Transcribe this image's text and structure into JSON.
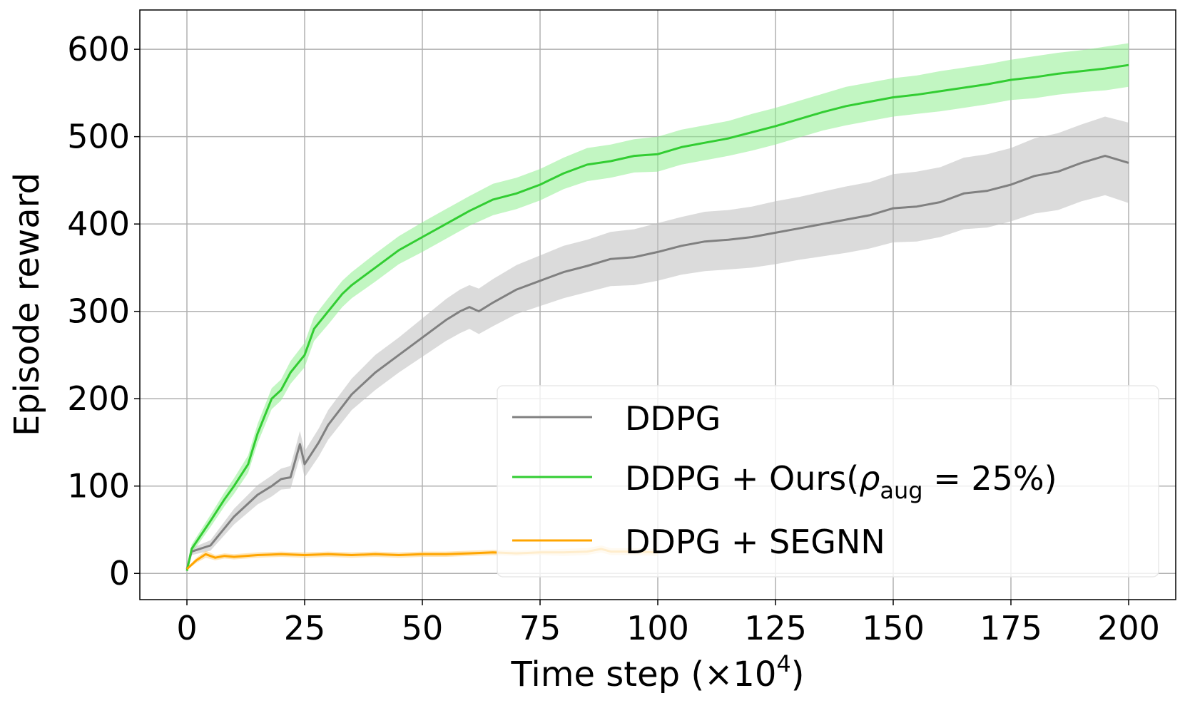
{
  "chart_data": {
    "type": "line",
    "title": "",
    "xlabel": "Time step (×10",
    "xlabel_sup": "4",
    "xlabel_suffix": ")",
    "ylabel": "Episode reward",
    "xlim": [
      -10,
      210
    ],
    "ylim": [
      -30,
      645
    ],
    "xticks": [
      0,
      25,
      50,
      75,
      100,
      125,
      150,
      175,
      200
    ],
    "yticks": [
      0,
      100,
      200,
      300,
      400,
      500,
      600
    ],
    "grid": true,
    "legend_position": "lower-right",
    "series": [
      {
        "name": "DDPG",
        "legend_main": "DDPG",
        "color": "#808080",
        "band_color": "#bebebe",
        "x": [
          0,
          1,
          5,
          10,
          15,
          18,
          20,
          22,
          24,
          25,
          28,
          30,
          35,
          40,
          45,
          50,
          55,
          58,
          60,
          62,
          65,
          70,
          75,
          80,
          85,
          90,
          95,
          100,
          105,
          110,
          115,
          120,
          125,
          130,
          135,
          140,
          145,
          150,
          155,
          160,
          165,
          170,
          175,
          180,
          185,
          190,
          195,
          200
        ],
        "y": [
          5,
          25,
          32,
          65,
          90,
          100,
          108,
          110,
          148,
          125,
          150,
          170,
          205,
          230,
          250,
          270,
          290,
          300,
          305,
          300,
          310,
          325,
          335,
          345,
          352,
          360,
          362,
          368,
          375,
          380,
          382,
          385,
          390,
          395,
          400,
          405,
          410,
          418,
          420,
          425,
          435,
          438,
          445,
          455,
          460,
          470,
          478,
          470
        ],
        "band": [
          2,
          4,
          6,
          9,
          11,
          12,
          12,
          13,
          15,
          15,
          16,
          17,
          18,
          20,
          20,
          22,
          24,
          25,
          25,
          26,
          27,
          28,
          29,
          30,
          30,
          31,
          32,
          33,
          33,
          34,
          34,
          35,
          36,
          36,
          37,
          38,
          38,
          39,
          40,
          40,
          41,
          42,
          42,
          43,
          44,
          44,
          45,
          46
        ]
      },
      {
        "name": "DDPG + Ours",
        "legend_main": "DDPG + Ours(",
        "legend_rho": "ρ",
        "legend_sub": "aug",
        "legend_rest": " = 25%)",
        "color": "#32cd32",
        "band_color": "#90ee90",
        "x": [
          0,
          1,
          5,
          8,
          10,
          13,
          15,
          18,
          20,
          22,
          25,
          27,
          30,
          33,
          35,
          40,
          45,
          50,
          55,
          60,
          65,
          70,
          75,
          80,
          85,
          90,
          95,
          100,
          105,
          110,
          115,
          120,
          125,
          130,
          135,
          140,
          145,
          150,
          155,
          160,
          165,
          170,
          175,
          180,
          185,
          190,
          195,
          200
        ],
        "y": [
          3,
          28,
          60,
          85,
          100,
          125,
          160,
          200,
          210,
          230,
          250,
          280,
          300,
          320,
          330,
          350,
          370,
          385,
          400,
          415,
          428,
          435,
          445,
          458,
          468,
          472,
          478,
          480,
          488,
          493,
          498,
          505,
          512,
          520,
          528,
          535,
          540,
          545,
          548,
          552,
          556,
          560,
          565,
          568,
          572,
          575,
          578,
          582
        ],
        "band": [
          2,
          5,
          7,
          8,
          9,
          10,
          11,
          12,
          12,
          13,
          14,
          14,
          15,
          15,
          15,
          16,
          16,
          17,
          17,
          17,
          18,
          18,
          18,
          18,
          19,
          19,
          19,
          20,
          20,
          20,
          20,
          21,
          21,
          21,
          21,
          22,
          22,
          22,
          22,
          23,
          23,
          23,
          23,
          24,
          24,
          24,
          25,
          25
        ]
      },
      {
        "name": "DDPG + SEGNN",
        "legend_main": "DDPG + SEGNN",
        "color": "#ffa500",
        "band_color": "#ffd27f",
        "x": [
          0,
          2,
          4,
          6,
          8,
          10,
          15,
          20,
          25,
          30,
          35,
          40,
          45,
          50,
          55,
          60,
          65,
          70,
          75,
          80,
          85,
          88,
          90,
          95,
          100
        ],
        "y": [
          5,
          15,
          22,
          18,
          20,
          19,
          21,
          22,
          21,
          22,
          21,
          22,
          21,
          22,
          22,
          23,
          24,
          23,
          24,
          24,
          25,
          28,
          25,
          25,
          24
        ],
        "band": [
          1,
          3,
          4,
          3,
          3,
          3,
          3,
          3,
          3,
          3,
          3,
          3,
          3,
          3,
          3,
          3,
          3,
          3,
          3,
          4,
          4,
          4,
          4,
          4,
          4
        ]
      }
    ]
  }
}
